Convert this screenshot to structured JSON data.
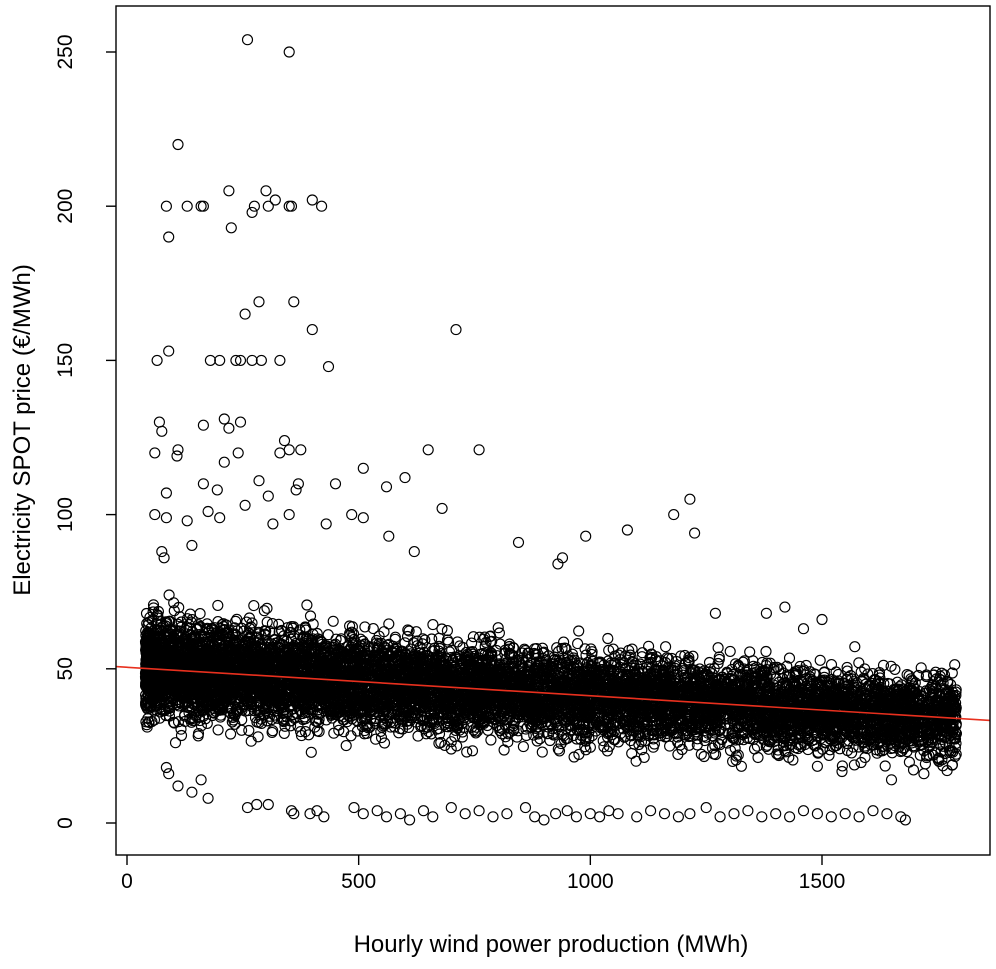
{
  "chart_data": {
    "type": "scatter",
    "title": "",
    "xlabel": "Hourly wind power production (MWh)",
    "ylabel": "Electricity SPOT price (€/MWh)",
    "xlim": [
      -30,
      1860
    ],
    "ylim": [
      -10,
      260
    ],
    "x_ticks": [
      0,
      500,
      1000,
      1500
    ],
    "y_ticks": [
      0,
      50,
      100,
      150,
      200,
      250
    ],
    "series_color": "#000000",
    "trend_color": "#e8301e",
    "trend_line": {
      "intercept": 50.5,
      "slope": -0.00925
    },
    "dense_band": {
      "note": "bulk of hourly observations (~thousands of points)",
      "x_range": [
        40,
        1790
      ],
      "center": {
        "intercept": 50.5,
        "slope": -0.00925
      },
      "spread": 11,
      "count": 9000
    },
    "outliers": [
      {
        "x": 260,
        "y": 254
      },
      {
        "x": 350,
        "y": 250
      },
      {
        "x": 110,
        "y": 220
      },
      {
        "x": 85,
        "y": 200
      },
      {
        "x": 130,
        "y": 200
      },
      {
        "x": 160,
        "y": 200
      },
      {
        "x": 165,
        "y": 200
      },
      {
        "x": 220,
        "y": 205
      },
      {
        "x": 270,
        "y": 198
      },
      {
        "x": 275,
        "y": 200
      },
      {
        "x": 300,
        "y": 205
      },
      {
        "x": 305,
        "y": 200
      },
      {
        "x": 320,
        "y": 202
      },
      {
        "x": 350,
        "y": 200
      },
      {
        "x": 355,
        "y": 200
      },
      {
        "x": 400,
        "y": 202
      },
      {
        "x": 420,
        "y": 200
      },
      {
        "x": 90,
        "y": 190
      },
      {
        "x": 225,
        "y": 193
      },
      {
        "x": 285,
        "y": 169
      },
      {
        "x": 360,
        "y": 169
      },
      {
        "x": 255,
        "y": 165
      },
      {
        "x": 400,
        "y": 160
      },
      {
        "x": 710,
        "y": 160
      },
      {
        "x": 65,
        "y": 150
      },
      {
        "x": 90,
        "y": 153
      },
      {
        "x": 180,
        "y": 150
      },
      {
        "x": 200,
        "y": 150
      },
      {
        "x": 235,
        "y": 150
      },
      {
        "x": 245,
        "y": 150
      },
      {
        "x": 270,
        "y": 150
      },
      {
        "x": 290,
        "y": 150
      },
      {
        "x": 330,
        "y": 150
      },
      {
        "x": 435,
        "y": 148
      },
      {
        "x": 70,
        "y": 130
      },
      {
        "x": 75,
        "y": 127
      },
      {
        "x": 60,
        "y": 120
      },
      {
        "x": 165,
        "y": 129
      },
      {
        "x": 210,
        "y": 131
      },
      {
        "x": 220,
        "y": 128
      },
      {
        "x": 245,
        "y": 130
      },
      {
        "x": 110,
        "y": 121
      },
      {
        "x": 108,
        "y": 119
      },
      {
        "x": 210,
        "y": 117
      },
      {
        "x": 240,
        "y": 120
      },
      {
        "x": 330,
        "y": 120
      },
      {
        "x": 340,
        "y": 124
      },
      {
        "x": 350,
        "y": 121
      },
      {
        "x": 375,
        "y": 121
      },
      {
        "x": 650,
        "y": 121
      },
      {
        "x": 760,
        "y": 121
      },
      {
        "x": 85,
        "y": 107
      },
      {
        "x": 165,
        "y": 110
      },
      {
        "x": 195,
        "y": 108
      },
      {
        "x": 285,
        "y": 111
      },
      {
        "x": 305,
        "y": 106
      },
      {
        "x": 365,
        "y": 108
      },
      {
        "x": 370,
        "y": 110
      },
      {
        "x": 450,
        "y": 110
      },
      {
        "x": 510,
        "y": 115
      },
      {
        "x": 560,
        "y": 109
      },
      {
        "x": 600,
        "y": 112
      },
      {
        "x": 680,
        "y": 102
      },
      {
        "x": 1180,
        "y": 100
      },
      {
        "x": 1215,
        "y": 105
      },
      {
        "x": 1225,
        "y": 94
      },
      {
        "x": 1080,
        "y": 95
      },
      {
        "x": 990,
        "y": 93
      },
      {
        "x": 845,
        "y": 91
      },
      {
        "x": 940,
        "y": 86
      },
      {
        "x": 930,
        "y": 84
      },
      {
        "x": 620,
        "y": 88
      },
      {
        "x": 565,
        "y": 93
      },
      {
        "x": 485,
        "y": 100
      },
      {
        "x": 510,
        "y": 99
      },
      {
        "x": 60,
        "y": 100
      },
      {
        "x": 85,
        "y": 99
      },
      {
        "x": 130,
        "y": 98
      },
      {
        "x": 75,
        "y": 88
      },
      {
        "x": 80,
        "y": 86
      },
      {
        "x": 140,
        "y": 90
      },
      {
        "x": 175,
        "y": 101
      },
      {
        "x": 200,
        "y": 99
      },
      {
        "x": 255,
        "y": 103
      },
      {
        "x": 315,
        "y": 97
      },
      {
        "x": 350,
        "y": 100
      },
      {
        "x": 430,
        "y": 97
      },
      {
        "x": 85,
        "y": 18
      },
      {
        "x": 90,
        "y": 16
      },
      {
        "x": 110,
        "y": 12
      },
      {
        "x": 140,
        "y": 10
      },
      {
        "x": 160,
        "y": 14
      },
      {
        "x": 175,
        "y": 8
      },
      {
        "x": 260,
        "y": 5
      },
      {
        "x": 280,
        "y": 6
      },
      {
        "x": 305,
        "y": 6
      },
      {
        "x": 355,
        "y": 4
      },
      {
        "x": 360,
        "y": 3
      },
      {
        "x": 395,
        "y": 3
      },
      {
        "x": 410,
        "y": 4
      },
      {
        "x": 425,
        "y": 2
      },
      {
        "x": 490,
        "y": 5
      },
      {
        "x": 510,
        "y": 3
      },
      {
        "x": 540,
        "y": 4
      },
      {
        "x": 560,
        "y": 2
      },
      {
        "x": 590,
        "y": 3
      },
      {
        "x": 610,
        "y": 1
      },
      {
        "x": 640,
        "y": 4
      },
      {
        "x": 660,
        "y": 2
      },
      {
        "x": 700,
        "y": 5
      },
      {
        "x": 730,
        "y": 3
      },
      {
        "x": 760,
        "y": 4
      },
      {
        "x": 790,
        "y": 2
      },
      {
        "x": 820,
        "y": 3
      },
      {
        "x": 860,
        "y": 5
      },
      {
        "x": 880,
        "y": 2
      },
      {
        "x": 900,
        "y": 1
      },
      {
        "x": 925,
        "y": 3
      },
      {
        "x": 950,
        "y": 4
      },
      {
        "x": 970,
        "y": 2
      },
      {
        "x": 1000,
        "y": 3
      },
      {
        "x": 1020,
        "y": 2
      },
      {
        "x": 1040,
        "y": 4
      },
      {
        "x": 1060,
        "y": 3
      },
      {
        "x": 1100,
        "y": 2
      },
      {
        "x": 1130,
        "y": 4
      },
      {
        "x": 1160,
        "y": 3
      },
      {
        "x": 1190,
        "y": 2
      },
      {
        "x": 1215,
        "y": 3
      },
      {
        "x": 1250,
        "y": 5
      },
      {
        "x": 1280,
        "y": 2
      },
      {
        "x": 1310,
        "y": 3
      },
      {
        "x": 1340,
        "y": 4
      },
      {
        "x": 1370,
        "y": 2
      },
      {
        "x": 1400,
        "y": 3
      },
      {
        "x": 1430,
        "y": 2
      },
      {
        "x": 1460,
        "y": 4
      },
      {
        "x": 1490,
        "y": 3
      },
      {
        "x": 1520,
        "y": 2
      },
      {
        "x": 1550,
        "y": 3
      },
      {
        "x": 1580,
        "y": 2
      },
      {
        "x": 1610,
        "y": 4
      },
      {
        "x": 1640,
        "y": 3
      },
      {
        "x": 1670,
        "y": 2
      },
      {
        "x": 1680,
        "y": 1
      },
      {
        "x": 1650,
        "y": 14
      },
      {
        "x": 1720,
        "y": 16
      },
      {
        "x": 1740,
        "y": 22
      },
      {
        "x": 1770,
        "y": 17
      },
      {
        "x": 1790,
        "y": 29
      },
      {
        "x": 1420,
        "y": 70
      },
      {
        "x": 1500,
        "y": 66
      },
      {
        "x": 1460,
        "y": 63
      },
      {
        "x": 1380,
        "y": 68
      },
      {
        "x": 1270,
        "y": 68
      }
    ]
  }
}
